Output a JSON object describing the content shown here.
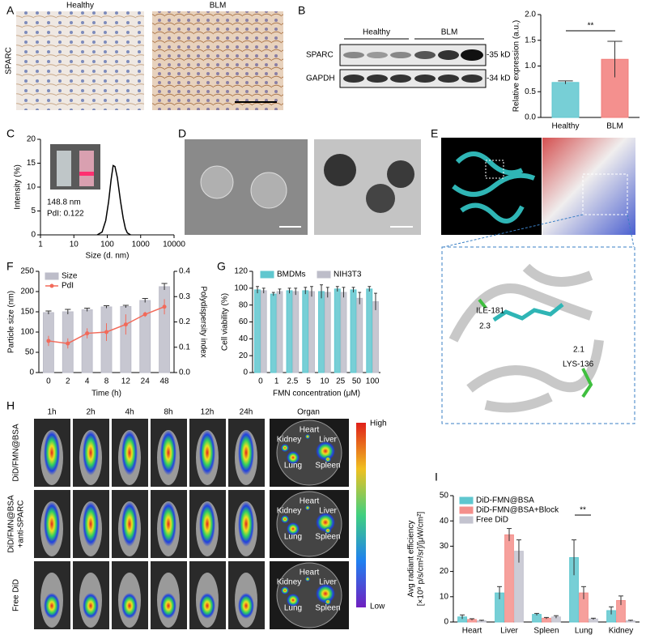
{
  "panels": [
    "A",
    "B",
    "C",
    "D",
    "E",
    "F",
    "G",
    "H",
    "I"
  ],
  "panel_a": {
    "columns": [
      "Healthy",
      "BLM"
    ],
    "row_label": "SPARC"
  },
  "panel_b_blot": {
    "groups": [
      "Healthy",
      "BLM"
    ],
    "rows": [
      "SPARC",
      "GAPDH"
    ],
    "sizes": [
      "-35 kD",
      "-34 kD"
    ]
  },
  "panel_c_inset": [
    "148.8 nm",
    "PdI: 0.122"
  ],
  "panel_e": {
    "labels": [
      "ILE-181",
      "2.3",
      "2.1",
      "LYS-136"
    ]
  },
  "panel_h": {
    "columns": [
      "1h",
      "2h",
      "4h",
      "8h",
      "12h",
      "24h",
      "Organ"
    ],
    "rows": [
      [
        "DiD/FMN@BSA"
      ],
      [
        "DiD/FMN@BSA",
        "+anti-SPARC"
      ],
      [
        "Free DiD"
      ]
    ],
    "organs": [
      [
        "Heart",
        "Kidney",
        "Liver",
        "Lung",
        "Spleen"
      ],
      [
        "Heart",
        "Kidney",
        "Liver",
        "Lung",
        "Spleen"
      ],
      [
        "Heart",
        "Kidney",
        "Liver",
        "Lung",
        "Spleen"
      ]
    ],
    "scale": [
      "High",
      "Low"
    ]
  },
  "chart_data": [
    {
      "type": "bar",
      "categories": [
        "Healthy",
        "BLM"
      ],
      "values": [
        0.68,
        1.13
      ],
      "errors": [
        0.03,
        0.35
      ],
      "colors": [
        "#5fc7cf",
        "#f27d7a"
      ],
      "ylabel": "Relative expression (a.u.)",
      "ylim": [
        0,
        2
      ],
      "yticks": [
        {
          "value": 0,
          "label": "0.0"
        },
        0.5,
        {
          "value": 1,
          "label": "1.0"
        },
        1.5,
        {
          "value": 2,
          "label": "2.0"
        }
      ],
      "annotations": [
        "**"
      ]
    },
    {
      "type": "line",
      "x": [
        50,
        70,
        90,
        110,
        130,
        150,
        170,
        200,
        250,
        300,
        350,
        400,
        500
      ],
      "values": [
        0,
        0.6,
        3,
        7,
        11.5,
        14.5,
        14.3,
        12,
        7,
        3.5,
        1.3,
        0.4,
        0
      ],
      "color": "#000000",
      "xlog": true,
      "xlim": [
        1,
        10000
      ],
      "xticks": [
        1,
        10,
        100,
        1000,
        10000
      ],
      "ylim": [
        0,
        20
      ],
      "yticks": [
        0,
        5,
        10,
        15,
        20
      ],
      "xlabel": "Size (d. nm)",
      "ylabel": "Intensity (%)"
    },
    {
      "type": "bar",
      "categories": [
        "0",
        "2",
        "4",
        "8",
        "12",
        "24",
        "48"
      ],
      "series": [
        {
          "name": "Size",
          "color": "#bdbdc9",
          "values": [
            148,
            150,
            155,
            162,
            163,
            178,
            212
          ],
          "errors": [
            4,
            6,
            4,
            3,
            3,
            5,
            8
          ]
        },
        {
          "name": "PdI",
          "color": "#f26a5a",
          "type": "line",
          "axis": "y2",
          "values": [
            0.125,
            0.115,
            0.155,
            0.16,
            0.19,
            0.23,
            0.26
          ],
          "errors": [
            0.02,
            0.02,
            0.02,
            0.035,
            0.04,
            0.01,
            0.03
          ]
        }
      ],
      "ylim": [
        0,
        250
      ],
      "yticks": [
        0,
        50,
        100,
        150,
        200,
        250
      ],
      "y2lim": [
        0,
        0.4
      ],
      "y2ticks": [
        {
          "value": 0,
          "label": "0.0"
        },
        0.1,
        0.2,
        0.3,
        0.4
      ],
      "xlabel": "Time (h)",
      "ylabel": "Particle size (nm)",
      "y2label": "Polydispersity index",
      "legend": "top-left"
    },
    {
      "type": "bar",
      "categories": [
        "0",
        "1",
        "2.5",
        "5",
        "10",
        "25",
        "50",
        "100"
      ],
      "series": [
        {
          "name": "BMDMs",
          "color": "#5fc7cf",
          "values": [
            98,
            93,
            97,
            97,
            96,
            99,
            98,
            99
          ],
          "errors": [
            4,
            2,
            3,
            4,
            8,
            3,
            3,
            3
          ]
        },
        {
          "name": "NIH3T3",
          "color": "#bdbdc9",
          "values": [
            97,
            96,
            96,
            96,
            95,
            95,
            88,
            84
          ],
          "errors": [
            3,
            3,
            4,
            6,
            6,
            6,
            7,
            10
          ]
        }
      ],
      "ylim": [
        0,
        120
      ],
      "yticks": [
        0,
        20,
        40,
        60,
        80,
        100,
        120
      ],
      "xlabel": "FMN concentration (μM)",
      "ylabel": "Cell viability (%)",
      "legend": "top"
    },
    {
      "type": "bar",
      "categories": [
        "Heart",
        "Liver",
        "Spleen",
        "Lung",
        "Kidney"
      ],
      "series": [
        {
          "name": "DiD-FMN@BSA",
          "color": "#5fc7cf",
          "values": [
            2,
            11.5,
            3,
            25.5,
            4.5
          ],
          "errors": [
            0.8,
            2.5,
            0.4,
            7,
            1.5
          ]
        },
        {
          "name": "DiD-FMN@BSA+Block",
          "color": "#f48f8b",
          "values": [
            1,
            34.5,
            1.5,
            11.5,
            8.5
          ],
          "errors": [
            0.3,
            2.5,
            0.3,
            2.5,
            1.8
          ]
        },
        {
          "name": "Free DiD",
          "color": "#c3c3cf",
          "values": [
            0.5,
            28,
            2,
            1.2,
            0.5
          ],
          "errors": [
            0.2,
            4.5,
            0.5,
            0.3,
            0.2
          ]
        }
      ],
      "ylim": [
        0,
        50
      ],
      "yticks": [
        0,
        10,
        20,
        30,
        40,
        50
      ],
      "ylabel": [
        "Avg radiant efficiency",
        "[×10⁹ p/s/cm²/sr]/[μW/cm²]"
      ],
      "legend": "top-left",
      "annotations": [
        "**"
      ]
    }
  ]
}
